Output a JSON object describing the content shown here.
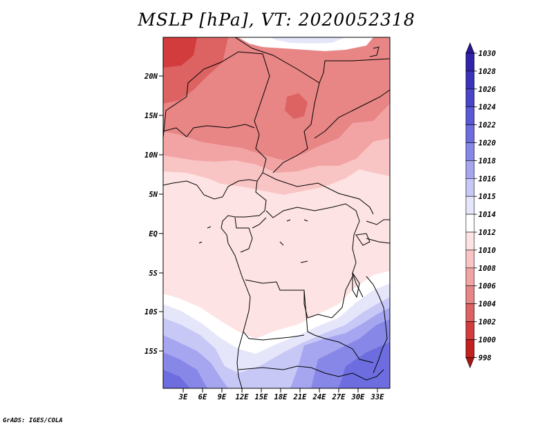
{
  "title": "MSLP [hPa], VT: 2020052318",
  "footer": "GrADS: IGES/COLA",
  "map": {
    "lat_labels": [
      "20N",
      "15N",
      "10N",
      "5N",
      "EQ",
      "5S",
      "10S",
      "15S"
    ],
    "lon_labels": [
      "3E",
      "6E",
      "9E",
      "12E",
      "15E",
      "18E",
      "21E",
      "24E",
      "27E",
      "30E",
      "33E"
    ]
  },
  "colorbar": {
    "levels": [
      "1030",
      "1028",
      "1026",
      "1024",
      "1022",
      "1020",
      "1018",
      "1016",
      "1015",
      "1014",
      "1012",
      "1010",
      "1008",
      "1006",
      "1004",
      "1002",
      "1000",
      "998"
    ],
    "colors": [
      "#2a1596",
      "#3224aa",
      "#3b33bb",
      "#4a44c8",
      "#5a58d4",
      "#6e6de0",
      "#8787e8",
      "#a6a6f0",
      "#c8c8f7",
      "#e6e6fb",
      "#ffffff",
      "#fde3e3",
      "#f9c4c4",
      "#f2a4a4",
      "#e88585",
      "#dd6262",
      "#d33c3c",
      "#c32020",
      "#a81515"
    ]
  }
}
